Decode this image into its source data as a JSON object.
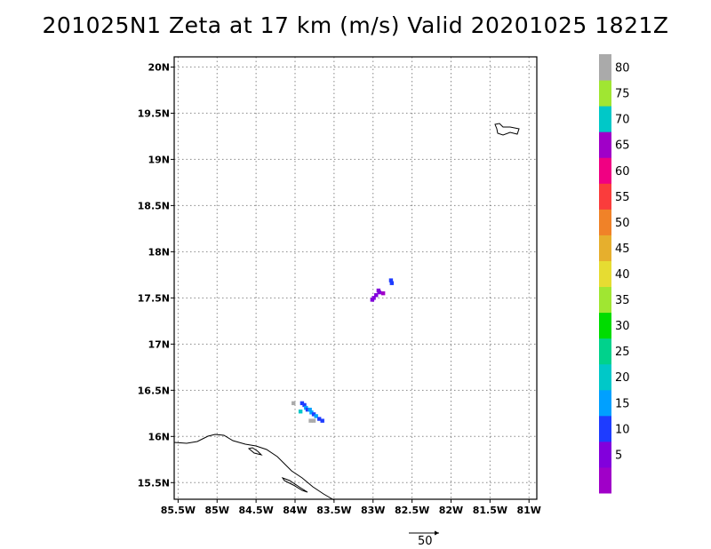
{
  "title": "201025N1 Zeta at 17 km (m/s) Valid 20201025 1821Z",
  "chart_data": {
    "type": "heatmap",
    "title": "201025N1 Zeta at 17 km (m/s) Valid 20201025 1821Z",
    "x_axis": {
      "range": [
        -85.55,
        -80.9
      ],
      "ticks": [
        {
          "value": -85.5,
          "label": "85.5W"
        },
        {
          "value": -85.0,
          "label": "85W"
        },
        {
          "value": -84.5,
          "label": "84.5W"
        },
        {
          "value": -84.0,
          "label": "84W"
        },
        {
          "value": -83.5,
          "label": "83.5W"
        },
        {
          "value": -83.0,
          "label": "83W"
        },
        {
          "value": -82.5,
          "label": "82.5W"
        },
        {
          "value": -82.0,
          "label": "82W"
        },
        {
          "value": -81.5,
          "label": "81.5W"
        },
        {
          "value": -81.0,
          "label": "81W"
        }
      ]
    },
    "y_axis": {
      "range": [
        15.32,
        20.11
      ],
      "ticks": [
        {
          "value": 15.5,
          "label": "15.5N"
        },
        {
          "value": 16.0,
          "label": "16N"
        },
        {
          "value": 16.5,
          "label": "16.5N"
        },
        {
          "value": 17.0,
          "label": "17N"
        },
        {
          "value": 17.5,
          "label": "17.5N"
        },
        {
          "value": 18.0,
          "label": "18N"
        },
        {
          "value": 18.5,
          "label": "18.5N"
        },
        {
          "value": 19.0,
          "label": "19N"
        },
        {
          "value": 19.5,
          "label": "19.5N"
        },
        {
          "value": 20.0,
          "label": "20N"
        }
      ]
    },
    "grid": true,
    "colorbar": {
      "placement": "right",
      "colors": [
        "#a000c8",
        "#8200dc",
        "#1e3cff",
        "#00a0ff",
        "#00c8c8",
        "#00d28c",
        "#00dc00",
        "#a0e632",
        "#e6dc32",
        "#e6af2d",
        "#f08228",
        "#fa3c3c",
        "#f00082",
        "#a000c8",
        "#00c8c8",
        "#a0e632",
        "#aaaaaa"
      ],
      "labels": [
        "5",
        "10",
        "15",
        "20",
        "25",
        "30",
        "35",
        "40",
        "45",
        "50",
        "55",
        "60",
        "65",
        "70",
        "75",
        "80"
      ]
    },
    "cells": [
      {
        "lon": -82.77,
        "lat": 17.69,
        "value": 10
      },
      {
        "lon": -82.76,
        "lat": 17.66,
        "value": 10
      },
      {
        "lon": -82.93,
        "lat": 17.58,
        "value": 5
      },
      {
        "lon": -82.92,
        "lat": 17.56,
        "value": 5
      },
      {
        "lon": -82.96,
        "lat": 17.53,
        "value": 5
      },
      {
        "lon": -82.99,
        "lat": 17.5,
        "value": 5
      },
      {
        "lon": -83.01,
        "lat": 17.48,
        "value": 5
      },
      {
        "lon": -82.87,
        "lat": 17.55,
        "value": 65
      },
      {
        "lon": -84.02,
        "lat": 16.36,
        "value": 80
      },
      {
        "lon": -83.91,
        "lat": 16.36,
        "value": 10
      },
      {
        "lon": -83.88,
        "lat": 16.34,
        "value": 10
      },
      {
        "lon": -83.86,
        "lat": 16.31,
        "value": 15
      },
      {
        "lon": -83.84,
        "lat": 16.29,
        "value": 10
      },
      {
        "lon": -83.81,
        "lat": 16.29,
        "value": 15
      },
      {
        "lon": -83.79,
        "lat": 16.26,
        "value": 15
      },
      {
        "lon": -83.76,
        "lat": 16.24,
        "value": 10
      },
      {
        "lon": -83.73,
        "lat": 16.22,
        "value": 15
      },
      {
        "lon": -83.69,
        "lat": 16.19,
        "value": 10
      },
      {
        "lon": -83.65,
        "lat": 16.17,
        "value": 10
      },
      {
        "lon": -83.93,
        "lat": 16.27,
        "value": 20
      },
      {
        "lon": -83.8,
        "lat": 16.17,
        "value": 80
      },
      {
        "lon": -83.76,
        "lat": 16.17,
        "value": 80
      }
    ],
    "vector_key": {
      "label": "50"
    }
  }
}
